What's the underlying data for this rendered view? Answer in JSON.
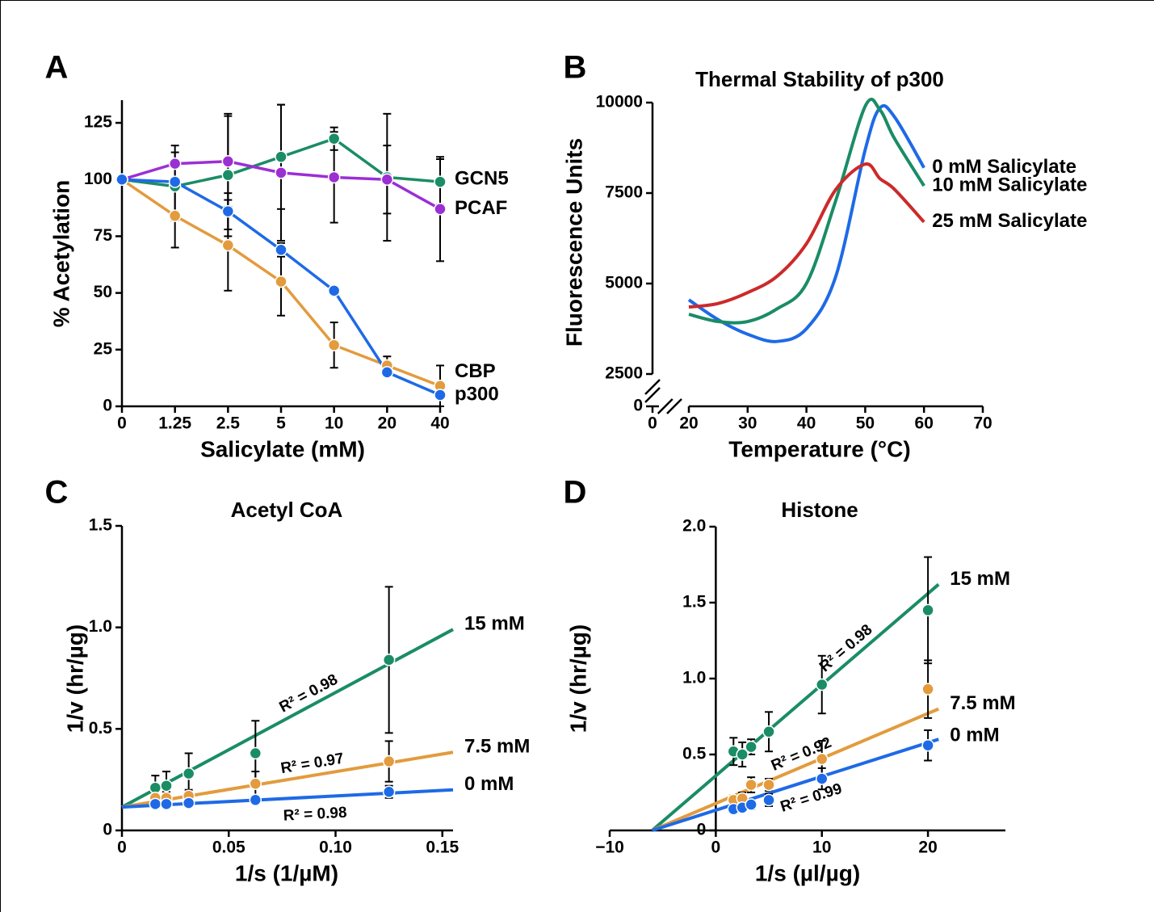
{
  "chart_data": [
    {
      "type": "line",
      "panel": "A",
      "x_label": "Salicylate (mM)",
      "y_label": "% Acetylation",
      "categories": [
        "0",
        "1.25",
        "2.5",
        "5",
        "10",
        "20",
        "40"
      ],
      "ylim": [
        0,
        135
      ],
      "yticks": [
        0,
        25,
        50,
        75,
        100,
        125
      ],
      "series": [
        {
          "name": "GCN5",
          "color": "#1a8c66",
          "values": [
            100,
            97,
            102,
            110,
            118,
            101,
            99
          ],
          "errors": [
            null,
            15,
            27,
            23,
            5,
            28,
            10
          ]
        },
        {
          "name": "PCAF",
          "color": "#9b2fd4",
          "values": [
            100,
            107,
            108,
            103,
            101,
            100,
            87
          ],
          "errors": [
            null,
            8,
            20,
            30,
            20,
            15,
            23
          ]
        },
        {
          "name": "CBP",
          "color": "#e39b3d",
          "values": [
            100,
            84,
            71,
            55,
            27,
            18,
            9
          ],
          "errors": [
            null,
            14,
            20,
            15,
            10,
            4,
            9
          ]
        },
        {
          "name": "p300",
          "color": "#1e6ae6",
          "values": [
            100,
            99,
            86,
            69,
            51,
            15,
            5
          ],
          "errors": [
            null,
            null,
            8,
            3,
            null,
            null,
            null
          ]
        }
      ]
    },
    {
      "type": "curve",
      "panel": "B",
      "title": "Thermal Stability of p300",
      "x_label": "Temperature (°C)",
      "y_label": "Fluorescence Units",
      "x": [
        20,
        25,
        30,
        35,
        40,
        45,
        50,
        52.5,
        55,
        60
      ],
      "xlim": [
        0,
        70
      ],
      "xticks": [
        0,
        20,
        30,
        40,
        50,
        60,
        70
      ],
      "xbreak": [
        0,
        20
      ],
      "ylim": [
        0,
        10000
      ],
      "yticks": [
        0,
        2500,
        5000,
        7500,
        10000
      ],
      "ybreak": [
        0,
        2500
      ],
      "series": [
        {
          "name": "0 mM Salicylate",
          "color": "#1e6ae6",
          "values": [
            4550,
            4000,
            3600,
            3400,
            3750,
            5200,
            8700,
            9850,
            9600,
            8200
          ]
        },
        {
          "name": "10 mM Salicylate",
          "color": "#1a8c66",
          "values": [
            4150,
            3950,
            3950,
            4300,
            5000,
            7300,
            9900,
            9800,
            9000,
            7700
          ]
        },
        {
          "name": "25 mM Salicylate",
          "color": "#cc2a2a",
          "values": [
            4350,
            4450,
            4750,
            5200,
            6100,
            7600,
            8300,
            7900,
            7600,
            6700
          ]
        }
      ]
    },
    {
      "type": "scatter",
      "panel": "C",
      "title": "Acetyl CoA",
      "x_label": "1/s (1/µM)",
      "y_label": "1/v (hr/µg)",
      "x": [
        0.015625,
        0.0208,
        0.03125,
        0.0625,
        0.125
      ],
      "xlim": [
        0,
        0.155
      ],
      "xticks": [
        0,
        0.05,
        {
          "value": 0.1,
          "label": "0.10"
        },
        0.15
      ],
      "ylim": [
        0,
        1.5
      ],
      "yticks": [
        0,
        0.5,
        {
          "value": 1,
          "label": "1.0"
        },
        1.5
      ],
      "series": [
        {
          "name": "15 mM",
          "color": "#1a8c66",
          "values": [
            0.21,
            0.22,
            0.28,
            0.38,
            0.84
          ],
          "errors": [
            0.06,
            0.07,
            0.1,
            0.16,
            0.36
          ],
          "fit_x": [
            0,
            0.155
          ],
          "fit_values": [
            0.115,
            0.99
          ],
          "annotation": "R² = 0.98"
        },
        {
          "name": "7.5 mM",
          "color": "#e39b3d",
          "values": [
            0.16,
            0.16,
            0.17,
            0.23,
            0.34
          ],
          "errors": [
            0.02,
            0.03,
            0.03,
            0.06,
            0.1
          ],
          "fit_x": [
            0,
            0.155
          ],
          "fit_values": [
            0.115,
            0.385
          ],
          "annotation": "R² = 0.97"
        },
        {
          "name": "0 mM",
          "color": "#1e6ae6",
          "values": [
            0.13,
            0.13,
            0.135,
            0.15,
            0.19
          ],
          "errors": [
            0.01,
            0.01,
            0.01,
            0.02,
            0.03
          ],
          "fit_x": [
            0,
            0.155
          ],
          "fit_values": [
            0.115,
            0.2
          ],
          "annotation": "R² = 0.98"
        }
      ]
    },
    {
      "type": "scatter",
      "panel": "D",
      "title": "Histone",
      "x_label": "1/s (µl/µg)",
      "y_label": "1/v (hr/µg)",
      "x": [
        1.67,
        2.5,
        3.33,
        5,
        10,
        20
      ],
      "xlim": [
        -10,
        27.3
      ],
      "xticks": [
        {
          "value": -10,
          "label": "−10"
        },
        0,
        10,
        20
      ],
      "ylim": [
        0,
        2
      ],
      "yticks": [
        0,
        0.5,
        {
          "value": 1,
          "label": "1.0"
        },
        1.5,
        {
          "value": 2,
          "label": "2.0"
        }
      ],
      "series": [
        {
          "name": "15 mM",
          "color": "#1a8c66",
          "values": [
            0.52,
            0.5,
            0.55,
            0.65,
            0.96,
            1.45
          ],
          "errors": [
            0.09,
            0.08,
            0.05,
            0.13,
            0.19,
            0.35
          ],
          "fit_x": [
            -6,
            21
          ],
          "fit_values": [
            0,
            1.62
          ],
          "annotation": "R² = 0.98"
        },
        {
          "name": "7.5 mM",
          "color": "#e39b3d",
          "values": [
            0.2,
            0.21,
            0.3,
            0.3,
            0.47,
            0.93
          ],
          "errors": [
            0.03,
            0.04,
            0.05,
            0.04,
            0.12,
            0.19
          ],
          "fit_x": [
            -6,
            21
          ],
          "fit_values": [
            0,
            0.8
          ],
          "annotation": "R² = 0.92"
        },
        {
          "name": "0 mM",
          "color": "#1e6ae6",
          "values": [
            0.14,
            0.15,
            0.17,
            0.2,
            0.34,
            0.56
          ],
          "errors": [
            0.02,
            0.02,
            0.03,
            0.04,
            0.07,
            0.1
          ],
          "fit_x": [
            -6,
            21
          ],
          "fit_values": [
            0,
            0.6
          ],
          "annotation": "R² = 0.99"
        }
      ]
    }
  ]
}
